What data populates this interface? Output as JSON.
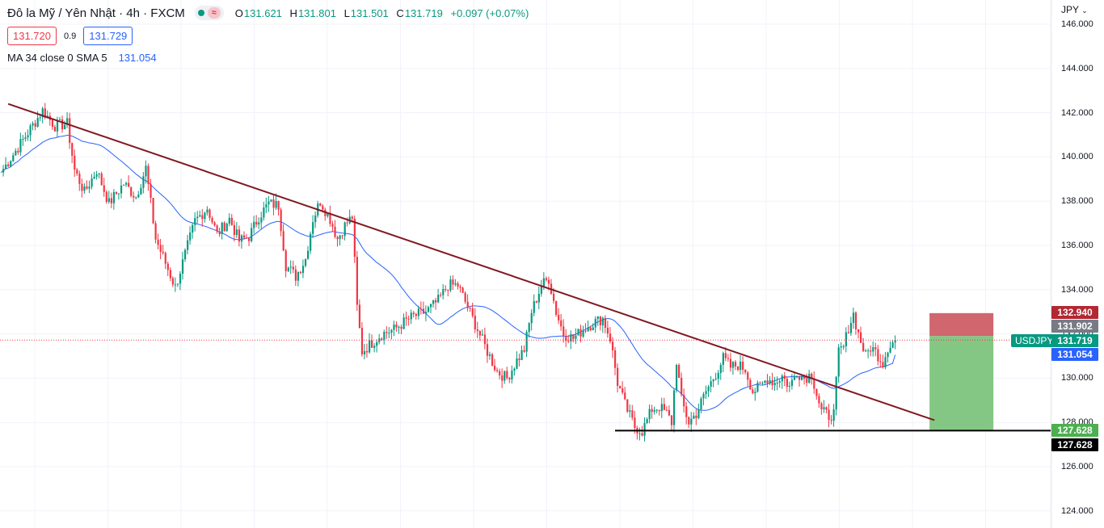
{
  "header": {
    "title": "Đô la Mỹ / Yên Nhật · 4h · FXCM",
    "ohlc": [
      {
        "k": "O",
        "v": "131.621"
      },
      {
        "k": "H",
        "v": "131.801"
      },
      {
        "k": "L",
        "v": "131.501"
      },
      {
        "k": "C",
        "v": "131.719"
      }
    ],
    "change": "+0.097 (+0.07%)",
    "sell_price": "131.720",
    "spread": "0.9",
    "buy_price": "131.729",
    "indicator_label": "MA 34 close 0 SMA 5",
    "indicator_value": "131.054"
  },
  "price_axis": {
    "currency": "JPY",
    "ticks": [
      "146.000",
      "144.000",
      "142.000",
      "140.000",
      "138.000",
      "136.000",
      "134.000",
      "132.000",
      "130.000",
      "128.000",
      "126.000",
      "124.000"
    ]
  },
  "price_tags": {
    "symbol": "USDJPY",
    "take_profit": "132.940",
    "marker": "131.902",
    "last": "131.719",
    "ma": "131.054",
    "stop": "127.628",
    "support": "127.628"
  },
  "colors": {
    "up": "#089981",
    "down": "#f23645",
    "ma": "#2962ff",
    "trendline": "#801922",
    "profit_zone": "#7dc47d",
    "loss_zone": "#cd5e66"
  },
  "chart_data": {
    "type": "candlestick",
    "symbol": "USDJPY",
    "timeframe": "4h",
    "ylim": [
      123.5,
      146.3
    ],
    "y_ticks": [
      124,
      126,
      128,
      130,
      132,
      134,
      136,
      138,
      140,
      142,
      144,
      146
    ],
    "grid": true,
    "pivots": [
      {
        "i": 0,
        "p": 139.3
      },
      {
        "i": 8,
        "p": 140.6
      },
      {
        "i": 14,
        "p": 141.6
      },
      {
        "i": 17,
        "p": 142.1
      },
      {
        "i": 22,
        "p": 141.4
      },
      {
        "i": 27,
        "p": 141.5
      },
      {
        "i": 30,
        "p": 139.4
      },
      {
        "i": 34,
        "p": 138.4
      },
      {
        "i": 39,
        "p": 139.4
      },
      {
        "i": 44,
        "p": 137.9
      },
      {
        "i": 50,
        "p": 138.8
      },
      {
        "i": 55,
        "p": 138.2
      },
      {
        "i": 59,
        "p": 139.5
      },
      {
        "i": 63,
        "p": 136.3
      },
      {
        "i": 67,
        "p": 135.2
      },
      {
        "i": 71,
        "p": 134.1
      },
      {
        "i": 75,
        "p": 135.6
      },
      {
        "i": 79,
        "p": 137.1
      },
      {
        "i": 84,
        "p": 137.7
      },
      {
        "i": 88,
        "p": 136.5
      },
      {
        "i": 93,
        "p": 137.2
      },
      {
        "i": 97,
        "p": 136.2
      },
      {
        "i": 101,
        "p": 136.4
      },
      {
        "i": 105,
        "p": 137.3
      },
      {
        "i": 109,
        "p": 137.9
      },
      {
        "i": 113,
        "p": 137.8
      },
      {
        "i": 116,
        "p": 135.1
      },
      {
        "i": 120,
        "p": 134.6
      },
      {
        "i": 124,
        "p": 135.4
      },
      {
        "i": 127,
        "p": 137.2
      },
      {
        "i": 130,
        "p": 138.0
      },
      {
        "i": 134,
        "p": 137.2
      },
      {
        "i": 137,
        "p": 136.3
      },
      {
        "i": 140,
        "p": 136.9
      },
      {
        "i": 143,
        "p": 137.3
      },
      {
        "i": 145,
        "p": 133.2
      },
      {
        "i": 147,
        "p": 131.2
      },
      {
        "i": 151,
        "p": 131.6
      },
      {
        "i": 155,
        "p": 132.0
      },
      {
        "i": 160,
        "p": 132.2
      },
      {
        "i": 165,
        "p": 132.6
      },
      {
        "i": 168,
        "p": 132.8
      },
      {
        "i": 173,
        "p": 133.0
      },
      {
        "i": 178,
        "p": 133.5
      },
      {
        "i": 182,
        "p": 134.2
      },
      {
        "i": 186,
        "p": 134.2
      },
      {
        "i": 190,
        "p": 133.2
      },
      {
        "i": 194,
        "p": 132.2
      },
      {
        "i": 198,
        "p": 131.2
      },
      {
        "i": 202,
        "p": 130.3
      },
      {
        "i": 206,
        "p": 130.0
      },
      {
        "i": 210,
        "p": 130.8
      },
      {
        "i": 213,
        "p": 131.3
      },
      {
        "i": 216,
        "p": 133.0
      },
      {
        "i": 220,
        "p": 134.2
      },
      {
        "i": 223,
        "p": 134.5
      },
      {
        "i": 226,
        "p": 133.0
      },
      {
        "i": 229,
        "p": 132.0
      },
      {
        "i": 233,
        "p": 131.8
      },
      {
        "i": 237,
        "p": 132.2
      },
      {
        "i": 241,
        "p": 132.5
      },
      {
        "i": 245,
        "p": 132.7
      },
      {
        "i": 248,
        "p": 131.8
      },
      {
        "i": 251,
        "p": 129.8
      },
      {
        "i": 254,
        "p": 128.8
      },
      {
        "i": 258,
        "p": 127.8
      },
      {
        "i": 261,
        "p": 127.6
      },
      {
        "i": 265,
        "p": 128.6
      },
      {
        "i": 268,
        "p": 128.7
      },
      {
        "i": 271,
        "p": 128.4
      },
      {
        "i": 273,
        "p": 128.0
      },
      {
        "i": 275,
        "p": 130.8
      },
      {
        "i": 277,
        "p": 129.0
      },
      {
        "i": 280,
        "p": 128.0
      },
      {
        "i": 283,
        "p": 128.4
      },
      {
        "i": 287,
        "p": 129.4
      },
      {
        "i": 291,
        "p": 130.2
      },
      {
        "i": 294,
        "p": 130.9
      },
      {
        "i": 297,
        "p": 130.5
      },
      {
        "i": 300,
        "p": 130.6
      },
      {
        "i": 303,
        "p": 130.4
      },
      {
        "i": 306,
        "p": 129.4
      },
      {
        "i": 309,
        "p": 129.6
      },
      {
        "i": 312,
        "p": 130.0
      },
      {
        "i": 315,
        "p": 129.8
      },
      {
        "i": 318,
        "p": 130.1
      },
      {
        "i": 321,
        "p": 129.6
      },
      {
        "i": 324,
        "p": 130.3
      },
      {
        "i": 327,
        "p": 130.0
      },
      {
        "i": 330,
        "p": 130.2
      },
      {
        "i": 332,
        "p": 129.3
      },
      {
        "i": 334,
        "p": 128.5
      },
      {
        "i": 337,
        "p": 128.3
      },
      {
        "i": 339,
        "p": 128.4
      },
      {
        "i": 341,
        "p": 131.2
      },
      {
        "i": 343,
        "p": 131.4
      },
      {
        "i": 345,
        "p": 132.3
      },
      {
        "i": 347,
        "p": 132.9
      },
      {
        "i": 349,
        "p": 132.0
      },
      {
        "i": 352,
        "p": 131.0
      },
      {
        "i": 354,
        "p": 131.4
      },
      {
        "i": 356,
        "p": 131.2
      },
      {
        "i": 359,
        "p": 130.7
      },
      {
        "i": 361,
        "p": 131.4
      },
      {
        "i": 364,
        "p": 131.72
      }
    ],
    "ma": {
      "name": "MA 34 close 0 SMA 5",
      "period": 34,
      "last": 131.054
    },
    "trendline": {
      "from": {
        "i": 3,
        "p": 142.4
      },
      "to": {
        "i": 380,
        "p": 128.1
      }
    },
    "support_line": {
      "from_i": 250,
      "price": 127.628
    },
    "position": {
      "entry": 131.902,
      "target": 132.94,
      "stop": 127.628,
      "from_i": 378,
      "to_i": 404
    },
    "last_price": 131.719
  }
}
